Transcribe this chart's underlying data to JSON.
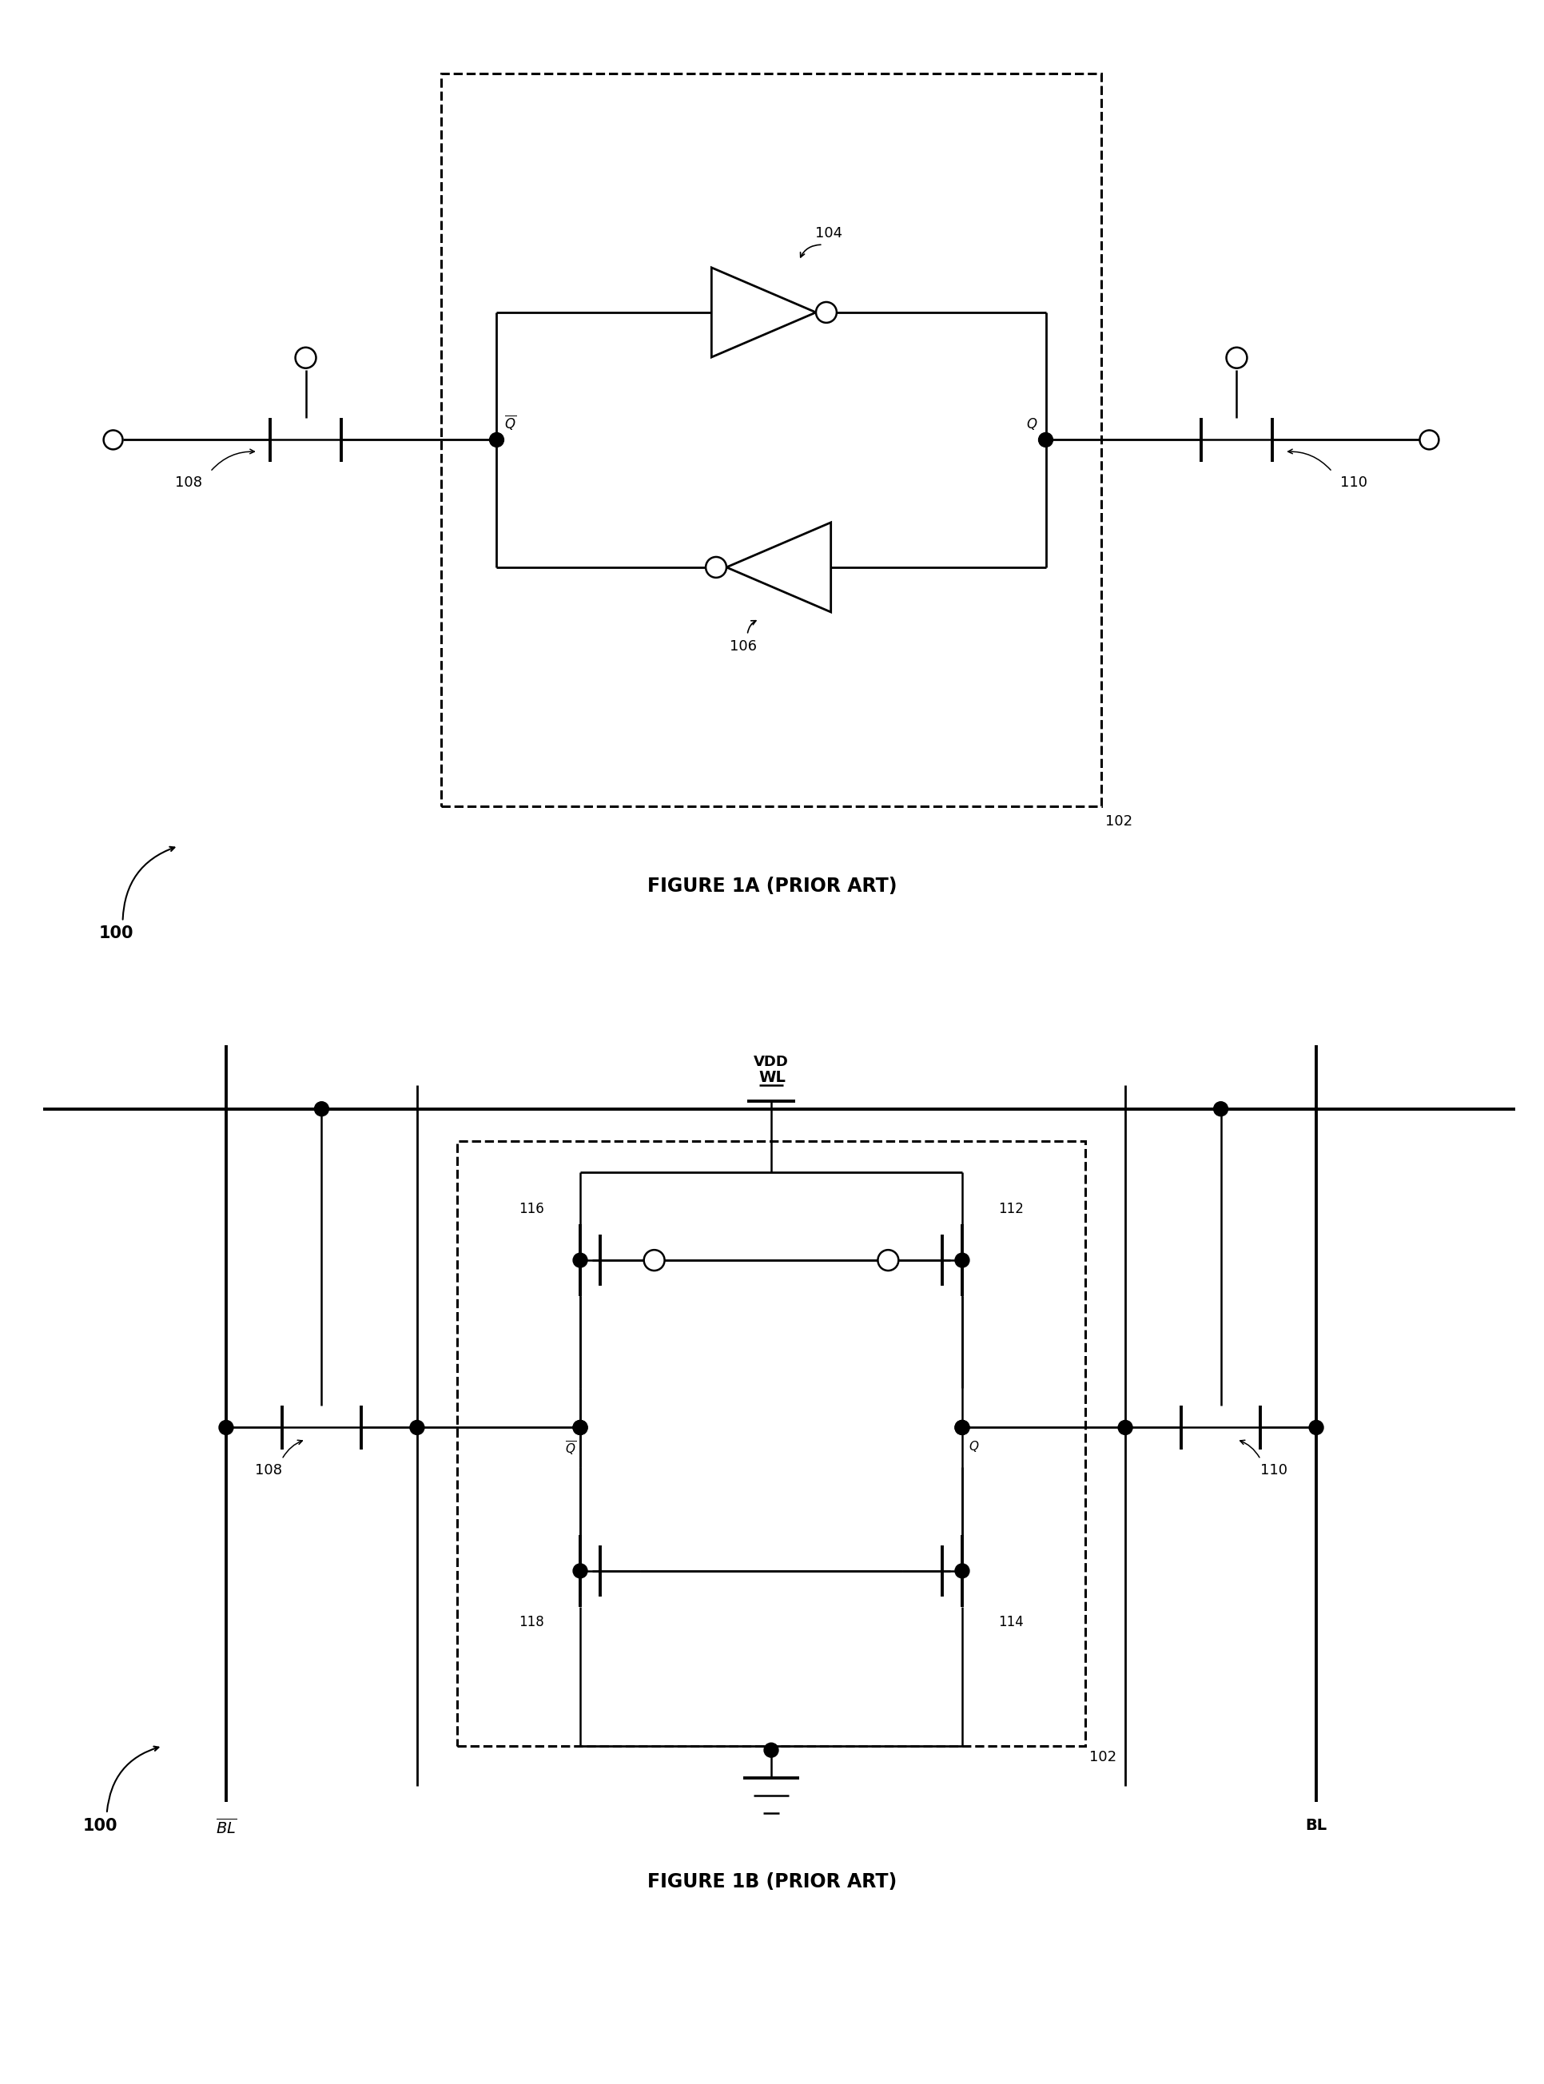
{
  "fig_width": 19.32,
  "fig_height": 26.08,
  "background_color": "#ffffff",
  "fig1a_title": "FIGURE 1A (PRIOR ART)",
  "fig1b_title": "FIGURE 1B (PRIOR ART)",
  "label_100": "100",
  "label_102_1": "102",
  "label_102_2": "102",
  "label_104": "104",
  "label_106": "106",
  "label_108_1": "108",
  "label_108_2": "108",
  "label_110_1": "110",
  "label_110_2": "110",
  "label_112": "112",
  "label_114": "114",
  "label_116": "116",
  "label_118": "118",
  "label_WL": "WL",
  "label_VDD": "VDD",
  "label_BL": "BL",
  "label_BLbar": "BL"
}
